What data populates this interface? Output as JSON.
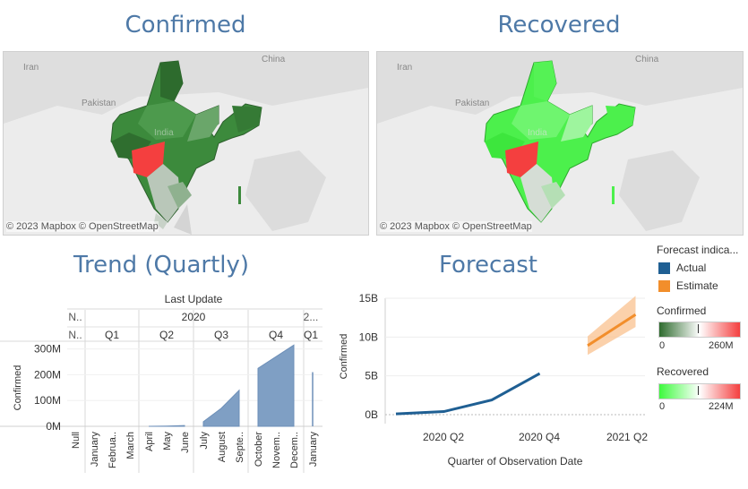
{
  "titles": {
    "confirmed": "Confirmed",
    "recovered": "Recovered",
    "trend": "Trend (Quartly)",
    "forecast": "Forecast"
  },
  "maps": {
    "confirmed": {
      "attribution": "© 2023 Mapbox © OpenStreetMap",
      "labels": {
        "iran": "Iran",
        "pakistan": "Pakistan",
        "china": "China",
        "india": "India"
      }
    },
    "recovered": {
      "attribution": "© 2023 Mapbox © OpenStreetMap",
      "labels": {
        "iran": "Iran",
        "pakistan": "Pakistan",
        "china": "China",
        "india": "India"
      }
    }
  },
  "colors": {
    "title": "#4e79a7",
    "actual": "#1f5f93",
    "estimate": "#f28e2b",
    "confirmed_low": "#2e6b2e",
    "confirmed_high": "#f43f3f",
    "recovered_low": "#3dfa3d",
    "recovered_high": "#f43f3f",
    "area": "#7f9fc4"
  },
  "trend": {
    "header": "Last Update",
    "year_2020": "2020",
    "year_2021": "2...",
    "null_col": "N..",
    "null_q": "N..",
    "quarters": [
      "Q1",
      "Q2",
      "Q3",
      "Q4"
    ],
    "q2021": "Q1",
    "months": [
      "Null",
      "January",
      "Februa..",
      "March",
      "April",
      "May",
      "June",
      "July",
      "August",
      "Septe..",
      "October",
      "Novem..",
      "Decem..",
      "January"
    ],
    "ylabel": "Confirmed",
    "yticks": [
      "300M",
      "200M",
      "100M",
      "0M"
    ]
  },
  "legend": {
    "forecast_title": "Forecast indica...",
    "actual": "Actual",
    "estimate": "Estimate",
    "confirmed_title": "Confirmed",
    "confirmed_min": "0",
    "confirmed_max": "260M",
    "recovered_title": "Recovered",
    "recovered_min": "0",
    "recovered_max": "224M"
  },
  "chart_data": [
    {
      "type": "area",
      "title": "Trend (Quartly)",
      "xlabel": "",
      "ylabel": "Confirmed",
      "ylim": [
        0,
        330
      ],
      "unit": "M",
      "x": [
        "Null",
        "January",
        "Februa..",
        "March",
        "April",
        "May",
        "June",
        "July",
        "August",
        "Septe..",
        "October",
        "Novem..",
        "Decem..",
        "January"
      ],
      "series": [
        {
          "values": [
            null,
            0,
            0,
            0,
            0,
            1,
            3,
            18,
            70,
            140,
            225,
            270,
            315,
            210
          ]
        }
      ]
    },
    {
      "type": "line",
      "title": "Forecast",
      "xlabel": "Quarter of Observation Date",
      "ylabel": "Confirmed",
      "ylim": [
        0,
        15
      ],
      "unit": "B",
      "yticks": [
        "0B",
        "5B",
        "10B",
        "15B"
      ],
      "xticks": [
        "2020 Q2",
        "2020 Q4",
        "2021 Q2"
      ],
      "series": [
        {
          "name": "Actual",
          "x": [
            0,
            1,
            2,
            3
          ],
          "values": [
            0.1,
            0.4,
            1.9,
            5.3
          ]
        },
        {
          "name": "Estimate",
          "x": [
            4,
            5
          ],
          "values": [
            8.9,
            12.9
          ],
          "band_low": [
            7.7,
            11.3
          ],
          "band_high": [
            10.1,
            15.3
          ]
        }
      ]
    }
  ]
}
